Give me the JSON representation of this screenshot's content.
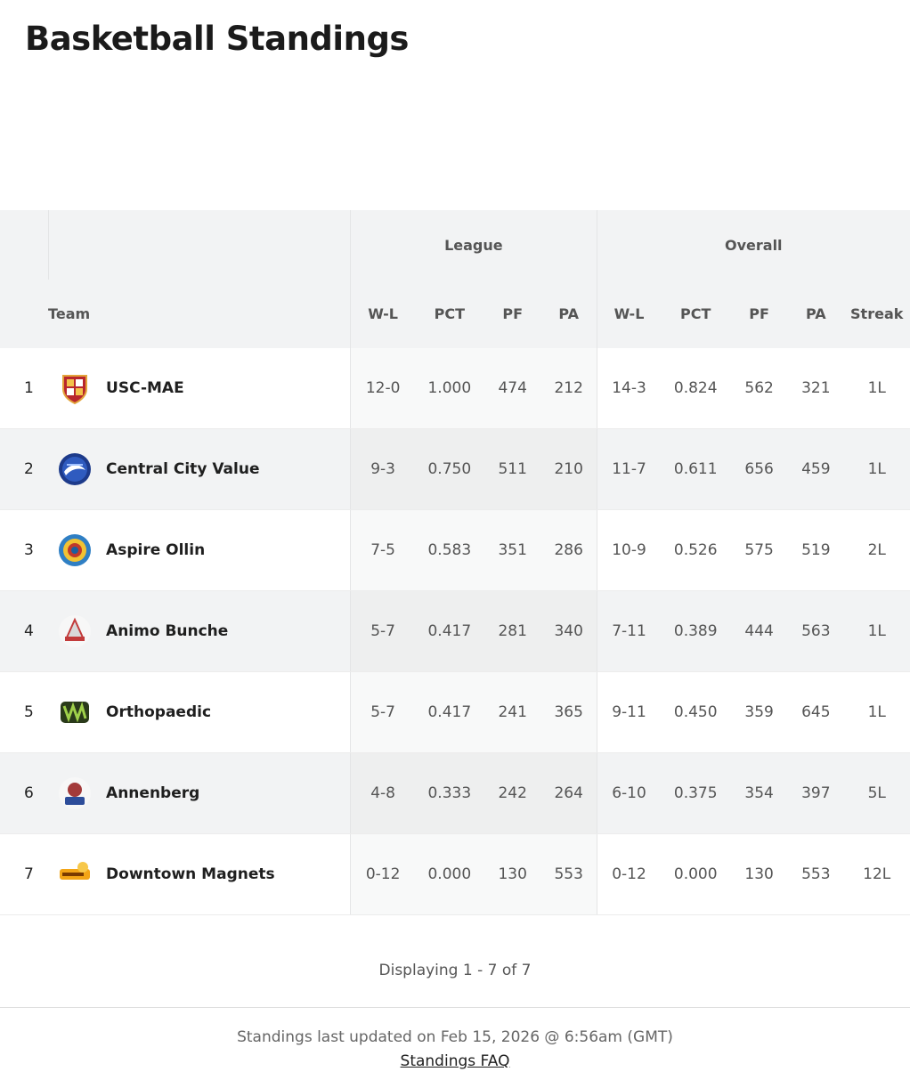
{
  "header": {
    "title": "Basketball Standings"
  },
  "table": {
    "group_labels": {
      "league": "League",
      "overall": "Overall"
    },
    "columns": {
      "team": "Team",
      "league_wl": "W-L",
      "league_pct": "PCT",
      "league_pf": "PF",
      "league_pa": "PA",
      "overall_wl": "W-L",
      "overall_pct": "PCT",
      "overall_pf": "PF",
      "overall_pa": "PA",
      "streak": "Streak"
    },
    "rows": [
      {
        "rank": "1",
        "team": "USC-MAE",
        "logo": "usc-mae-logo",
        "league_wl": "12-0",
        "league_pct": "1.000",
        "league_pf": "474",
        "league_pa": "212",
        "overall_wl": "14-3",
        "overall_pct": "0.824",
        "overall_pf": "562",
        "overall_pa": "321",
        "streak": "1L"
      },
      {
        "rank": "2",
        "team": "Central City Value",
        "logo": "central-city-value-logo",
        "league_wl": "9-3",
        "league_pct": "0.750",
        "league_pf": "511",
        "league_pa": "210",
        "overall_wl": "11-7",
        "overall_pct": "0.611",
        "overall_pf": "656",
        "overall_pa": "459",
        "streak": "1L"
      },
      {
        "rank": "3",
        "team": "Aspire Ollin",
        "logo": "aspire-ollin-logo",
        "league_wl": "7-5",
        "league_pct": "0.583",
        "league_pf": "351",
        "league_pa": "286",
        "overall_wl": "10-9",
        "overall_pct": "0.526",
        "overall_pf": "575",
        "overall_pa": "519",
        "streak": "2L"
      },
      {
        "rank": "4",
        "team": "Animo Bunche",
        "logo": "animo-bunche-logo",
        "league_wl": "5-7",
        "league_pct": "0.417",
        "league_pf": "281",
        "league_pa": "340",
        "overall_wl": "7-11",
        "overall_pct": "0.389",
        "overall_pf": "444",
        "overall_pa": "563",
        "streak": "1L"
      },
      {
        "rank": "5",
        "team": "Orthopaedic",
        "logo": "orthopaedic-logo",
        "league_wl": "5-7",
        "league_pct": "0.417",
        "league_pf": "241",
        "league_pa": "365",
        "overall_wl": "9-11",
        "overall_pct": "0.450",
        "overall_pf": "359",
        "overall_pa": "645",
        "streak": "1L"
      },
      {
        "rank": "6",
        "team": "Annenberg",
        "logo": "annenberg-logo",
        "league_wl": "4-8",
        "league_pct": "0.333",
        "league_pf": "242",
        "league_pa": "264",
        "overall_wl": "6-10",
        "overall_pct": "0.375",
        "overall_pf": "354",
        "overall_pa": "397",
        "streak": "5L"
      },
      {
        "rank": "7",
        "team": "Downtown Magnets",
        "logo": "downtown-magnets-logo",
        "league_wl": "0-12",
        "league_pct": "0.000",
        "league_pf": "130",
        "league_pa": "553",
        "overall_wl": "0-12",
        "overall_pct": "0.000",
        "overall_pf": "130",
        "overall_pa": "553",
        "streak": "12L"
      }
    ]
  },
  "footer": {
    "pagination": "Displaying 1 - 7 of 7",
    "updated": "Standings last updated on Feb 15, 2026 @ 6:56am (GMT)",
    "faq_link": "Standings FAQ"
  },
  "colors": {
    "header_bg": "#f2f3f4",
    "stripe_bg": "#f2f3f4",
    "text_dark": "#1f1f1f",
    "text_muted": "#555555"
  }
}
